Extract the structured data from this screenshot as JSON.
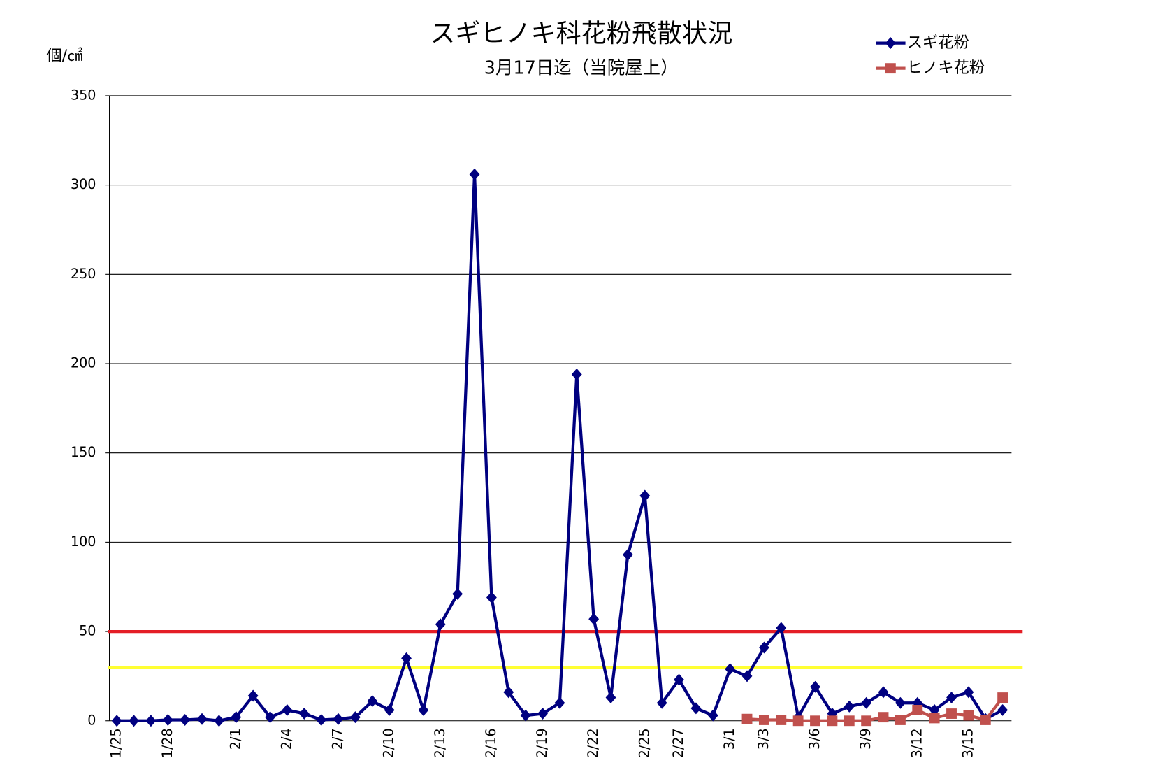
{
  "chart_data": {
    "type": "line",
    "title": "スギヒノキ科花粉飛散状況",
    "subtitle": "3月17日迄（当院屋上）",
    "y_label": "個/㎠",
    "categories": [
      "1/25",
      null,
      null,
      "1/28",
      null,
      null,
      null,
      "2/1",
      null,
      null,
      "2/4",
      null,
      null,
      "2/7",
      null,
      null,
      "2/10",
      null,
      null,
      "2/13",
      null,
      null,
      "2/16",
      null,
      null,
      "2/19",
      null,
      null,
      "2/22",
      null,
      null,
      "2/25",
      null,
      "2/27",
      null,
      null,
      "3/1",
      null,
      "3/3",
      null,
      null,
      "3/6",
      null,
      null,
      "3/9",
      null,
      null,
      "3/12",
      null,
      null,
      "3/15",
      null,
      null
    ],
    "series": [
      {
        "name": "スギ花粉",
        "color": "#000080",
        "marker": "diamond",
        "values": [
          0,
          0,
          0,
          0.5,
          0.5,
          1,
          0,
          2,
          14,
          2,
          6,
          4,
          0.5,
          1,
          2,
          11,
          6,
          35,
          6,
          54,
          71,
          306,
          69,
          16,
          3,
          4,
          10,
          194,
          57,
          13,
          93,
          126,
          10,
          23,
          7,
          3,
          29,
          25,
          41,
          52,
          2,
          19,
          4,
          8,
          10,
          16,
          10,
          10,
          6,
          13,
          16,
          1,
          6
        ]
      },
      {
        "name": "ヒノキ花粉",
        "color": "#c0504d",
        "marker": "square",
        "values": [
          null,
          null,
          null,
          null,
          null,
          null,
          null,
          null,
          null,
          null,
          null,
          null,
          null,
          null,
          null,
          null,
          null,
          null,
          null,
          null,
          null,
          null,
          null,
          null,
          null,
          null,
          null,
          null,
          null,
          null,
          null,
          null,
          null,
          null,
          null,
          null,
          null,
          1,
          0.5,
          0.5,
          0,
          0,
          0,
          0,
          0,
          2,
          0.5,
          6,
          1.5,
          4,
          3,
          0.5,
          13
        ]
      }
    ],
    "reference_lines": [
      {
        "value": 50,
        "color": "#e41e26"
      },
      {
        "value": 30,
        "color": "#ffff33"
      }
    ],
    "ylim": [
      0,
      350
    ],
    "yticks": [
      0,
      50,
      100,
      150,
      200,
      250,
      300,
      350
    ],
    "grid": true,
    "legend": "top-right"
  }
}
